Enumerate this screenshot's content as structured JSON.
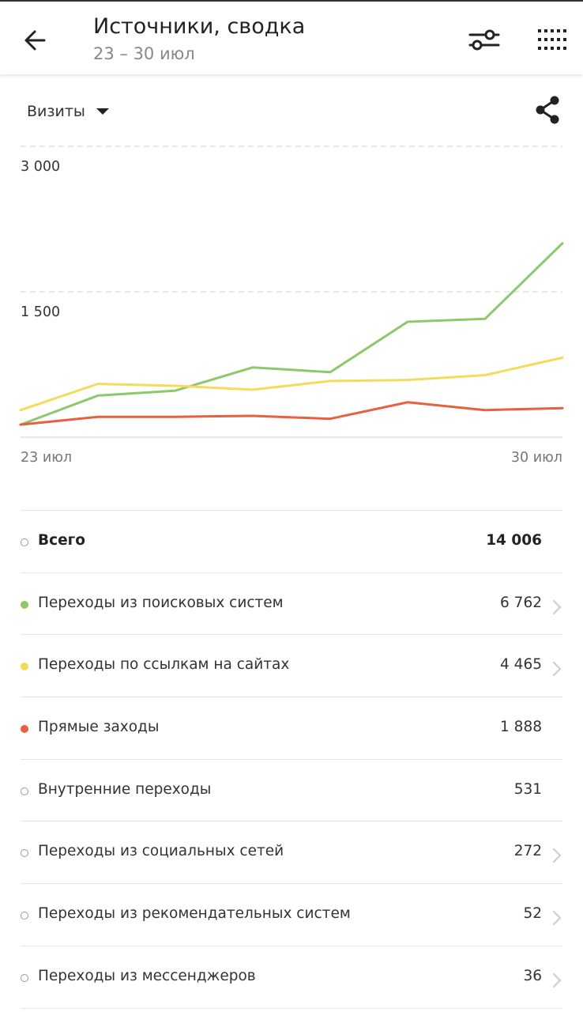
{
  "header": {
    "title": "Источники, сводка",
    "subtitle": "23 – 30 июл"
  },
  "controls": {
    "metric": "Визиты"
  },
  "chart_data": {
    "type": "line",
    "x": [
      "23 июл",
      "24 июл",
      "25 июл",
      "26 июл",
      "27 июл",
      "28 июл",
      "29 июл",
      "30 июл"
    ],
    "x_tick_labels": [
      "23 июл",
      "30 июл"
    ],
    "y_tick_labels": [
      "3 000",
      "1 500"
    ],
    "ylim": [
      0,
      3000
    ],
    "grid": true,
    "series": [
      {
        "name": "Переходы из поисковых систем",
        "color": "#8ec86a",
        "values": [
          130,
          430,
          480,
          720,
          670,
          1190,
          1220,
          2000
        ]
      },
      {
        "name": "Переходы по ссылкам на сайтах",
        "color": "#f3dc5c",
        "values": [
          280,
          550,
          530,
          490,
          580,
          590,
          640,
          820
        ]
      },
      {
        "name": "Прямые заходы",
        "color": "#e8603d",
        "values": [
          130,
          210,
          210,
          220,
          190,
          360,
          280,
          300
        ]
      }
    ]
  },
  "rows": [
    {
      "label": "Всего",
      "value": "14 006",
      "color": "",
      "hollow": true,
      "chevron": false,
      "total": true
    },
    {
      "label": "Переходы из поисковых систем",
      "value": "6 762",
      "color": "#8ec86a",
      "hollow": false,
      "chevron": true,
      "total": false
    },
    {
      "label": "Переходы по ссылкам на сайтах",
      "value": "4 465",
      "color": "#f3dc5c",
      "hollow": false,
      "chevron": true,
      "total": false
    },
    {
      "label": "Прямые заходы",
      "value": "1 888",
      "color": "#e8603d",
      "hollow": false,
      "chevron": false,
      "total": false
    },
    {
      "label": "Внутренние переходы",
      "value": "531",
      "color": "",
      "hollow": true,
      "chevron": false,
      "total": false
    },
    {
      "label": "Переходы из социальных сетей",
      "value": "272",
      "color": "",
      "hollow": true,
      "chevron": true,
      "total": false
    },
    {
      "label": "Переходы из рекомендательных систем",
      "value": "52",
      "color": "",
      "hollow": true,
      "chevron": true,
      "total": false
    },
    {
      "label": "Переходы из мессенджеров",
      "value": "36",
      "color": "",
      "hollow": true,
      "chevron": true,
      "total": false
    }
  ]
}
